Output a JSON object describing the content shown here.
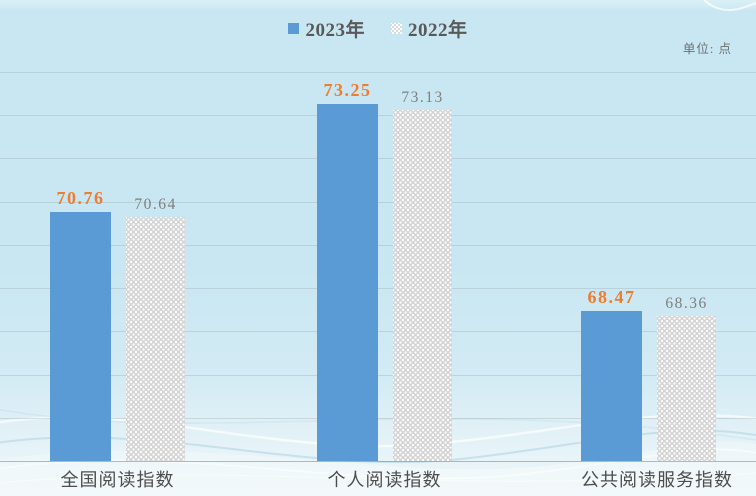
{
  "chart_data": {
    "type": "bar",
    "title": "",
    "unit": "单位: 点",
    "categories": [
      "全国阅读指数",
      "个人阅读指数",
      "公共阅读服务指数"
    ],
    "series": [
      {
        "name": "2023年",
        "values": [
          70.76,
          73.25,
          68.47
        ],
        "color": "#5b9bd5",
        "label_color": "#ed7d31",
        "marker": "solid-blue-square"
      },
      {
        "name": "2022年",
        "values": [
          70.64,
          73.13,
          68.36
        ],
        "color": "#d4d4d4",
        "label_color": "#7f7f7f",
        "marker": "dotted-gray-square"
      }
    ],
    "ylim": [
      65,
      74
    ],
    "gridline_step": 1,
    "grid": true,
    "legend_position": "top-center",
    "value_decimals": 2
  },
  "colors": {
    "background": "#c9e7f2",
    "bar_2023": "#5b9bd5",
    "bar_2022_base": "#d4d4d4",
    "label_2023": "#ed7d31",
    "label_2022": "#7f7f7f",
    "legend_text": "#595959",
    "gridline": "#9eacb4"
  }
}
